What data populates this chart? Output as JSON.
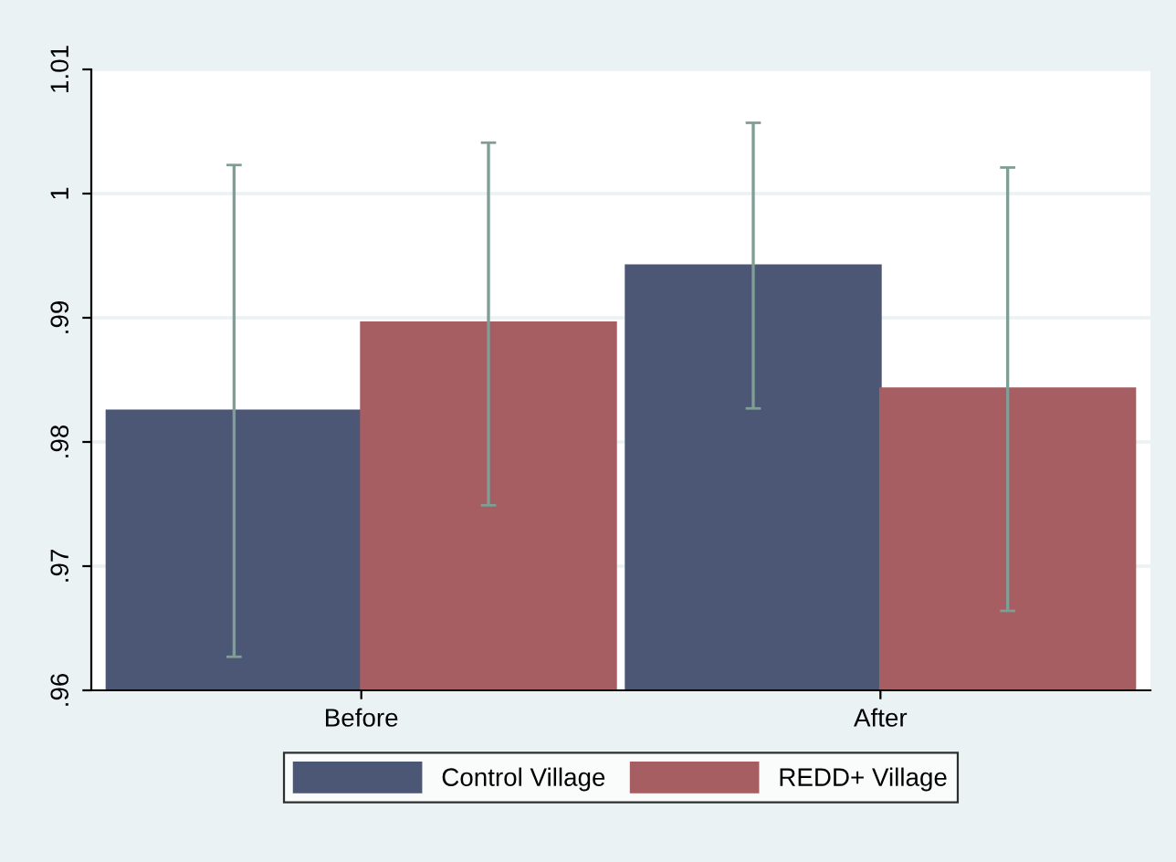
{
  "chart_data": {
    "type": "bar",
    "categories": [
      "Before",
      "After"
    ],
    "series": [
      {
        "name": "Control Village",
        "color": "#4b5775",
        "values": [
          0.9825,
          0.9942
        ],
        "errors": [
          [
            0.9627,
            1.0023
          ],
          [
            0.9827,
            1.0057
          ]
        ]
      },
      {
        "name": "REDD+ Village",
        "color": "#a65e62",
        "values": [
          0.9896,
          0.9843
        ],
        "errors": [
          [
            0.9749,
            1.0041
          ],
          [
            0.9664,
            1.0021
          ]
        ]
      }
    ],
    "ylim": [
      0.96,
      1.01
    ],
    "yticks": [
      {
        "value": 0.96,
        "label": ".96"
      },
      {
        "value": 0.97,
        "label": ".97"
      },
      {
        "value": 0.98,
        "label": ".98"
      },
      {
        "value": 0.99,
        "label": ".99"
      },
      {
        "value": 1,
        "label": "1"
      },
      {
        "value": 1.01,
        "label": "1.01"
      }
    ],
    "grid": "y",
    "legend": "bottom"
  }
}
